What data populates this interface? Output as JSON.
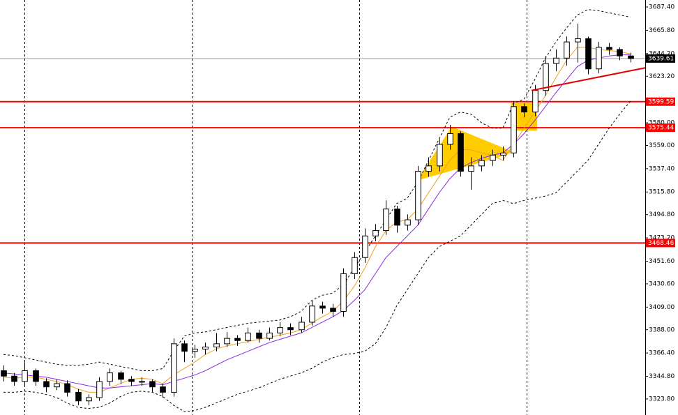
{
  "chart_data": {
    "type": "candlestick",
    "ylim": [
      3308.9,
      3693.9
    ],
    "xlim": [
      -0.33,
      60.4
    ],
    "yticks": [
      {
        "value": 3687.4,
        "label": "3687.40"
      },
      {
        "value": 3665.8,
        "label": "3665.80"
      },
      {
        "value": 3644.2,
        "label": "3644.20"
      },
      {
        "value": 3623.2,
        "label": "3623.20"
      },
      {
        "value": 3580,
        "label": "3580.00"
      },
      {
        "value": 3559,
        "label": "3559.00"
      },
      {
        "value": 3537.4,
        "label": "3537.40"
      },
      {
        "value": 3515.8,
        "label": "3515.80"
      },
      {
        "value": 3494.8,
        "label": "3494.80"
      },
      {
        "value": 3473.2,
        "label": "3473.20"
      },
      {
        "value": 3451.6,
        "label": "3451.60"
      },
      {
        "value": 3430.6,
        "label": "3430.60"
      },
      {
        "value": 3409,
        "label": "3409.00"
      },
      {
        "value": 3388,
        "label": "3388.00"
      },
      {
        "value": 3366.4,
        "label": "3366.40"
      },
      {
        "value": 3344.8,
        "label": "3344.80"
      },
      {
        "value": 3323.8,
        "label": "3323.80"
      }
    ],
    "open": [
      3350,
      3345,
      3340,
      3350,
      3340,
      3335,
      3338,
      3330,
      3322,
      3325,
      3340,
      3348,
      3342,
      3340,
      3340,
      3335,
      3330,
      3375,
      3368,
      3370,
      3372,
      3375,
      3380,
      3378,
      3385,
      3380,
      3385,
      3390,
      3388,
      3395,
      3410,
      3408,
      3405,
      3440,
      3455,
      3475,
      3480,
      3500,
      3485,
      3490,
      3535,
      3540,
      3560,
      3570,
      3535,
      3540,
      3545,
      3550,
      3552,
      3595,
      3590,
      3610,
      3635,
      3640,
      3655,
      3658,
      3630,
      3650,
      3648,
      3642
    ],
    "high": [
      3355,
      3348,
      3358,
      3352,
      3343,
      3342,
      3341,
      3333,
      3328,
      3344,
      3352,
      3350,
      3345,
      3344,
      3342,
      3338,
      3380,
      3378,
      3374,
      3376,
      3385,
      3386,
      3383,
      3390,
      3388,
      3390,
      3395,
      3394,
      3400,
      3415,
      3414,
      3412,
      3445,
      3460,
      3482,
      3486,
      3508,
      3503,
      3495,
      3540,
      3548,
      3565,
      3578,
      3572,
      3548,
      3550,
      3555,
      3558,
      3600,
      3598,
      3615,
      3642,
      3648,
      3660,
      3672,
      3660,
      3655,
      3654,
      3650,
      3645
    ],
    "low": [
      3340,
      3336,
      3336,
      3336,
      3330,
      3332,
      3326,
      3318,
      3318,
      3322,
      3336,
      3338,
      3336,
      3336,
      3330,
      3325,
      3326,
      3358,
      3362,
      3365,
      3368,
      3372,
      3373,
      3376,
      3376,
      3378,
      3382,
      3383,
      3385,
      3392,
      3403,
      3400,
      3400,
      3435,
      3450,
      3470,
      3476,
      3478,
      3480,
      3485,
      3530,
      3535,
      3555,
      3530,
      3518,
      3535,
      3540,
      3545,
      3548,
      3585,
      3586,
      3605,
      3628,
      3633,
      3636,
      3625,
      3626,
      3643,
      3638,
      3636
    ],
    "close": [
      3345,
      3340,
      3350,
      3340,
      3335,
      3338,
      3330,
      3322,
      3325,
      3340,
      3348,
      3342,
      3340,
      3340,
      3335,
      3330,
      3375,
      3368,
      3370,
      3372,
      3375,
      3380,
      3378,
      3385,
      3380,
      3385,
      3390,
      3388,
      3395,
      3410,
      3408,
      3405,
      3440,
      3455,
      3475,
      3480,
      3500,
      3485,
      3490,
      3535,
      3540,
      3560,
      3570,
      3535,
      3540,
      3545,
      3550,
      3552,
      3595,
      3590,
      3610,
      3635,
      3640,
      3655,
      3658,
      3630,
      3650,
      3648,
      3642,
      3639.61
    ],
    "up_color": "#ffffff",
    "down_color": "#000000",
    "indicators": [
      {
        "color": "#000000",
        "dashed": true,
        "values": [
          3365,
          3364,
          3362,
          3360,
          3358,
          3356,
          3355,
          3355,
          3356,
          3358,
          3356,
          3354,
          3352,
          3350,
          3350,
          3352,
          3368,
          3382,
          3385,
          3386,
          3388,
          3390,
          3392,
          3394,
          3395,
          3396,
          3397,
          3400,
          3405,
          3415,
          3420,
          3422,
          3430,
          3445,
          3460,
          3475,
          3490,
          3505,
          3510,
          3525,
          3545,
          3565,
          3585,
          3590,
          3588,
          3580,
          3575,
          3575,
          3598,
          3602,
          3620,
          3640,
          3655,
          3668,
          3680,
          3685,
          3684,
          3682,
          3680,
          3678
        ]
      },
      {
        "color": "#000000",
        "dashed": true,
        "values": [
          3330,
          3330,
          3331,
          3330,
          3328,
          3325,
          3320,
          3316,
          3315,
          3316,
          3320,
          3326,
          3330,
          3331,
          3330,
          3326,
          3318,
          3312,
          3313,
          3316,
          3320,
          3324,
          3328,
          3331,
          3334,
          3338,
          3342,
          3345,
          3348,
          3352,
          3358,
          3362,
          3365,
          3366,
          3368,
          3375,
          3390,
          3410,
          3425,
          3440,
          3455,
          3465,
          3470,
          3475,
          3485,
          3495,
          3505,
          3508,
          3505,
          3508,
          3510,
          3512,
          3515,
          3525,
          3535,
          3545,
          3560,
          3575,
          3588,
          3600
        ]
      },
      {
        "color": "#f0a020",
        "dashed": false,
        "values": [
          3344,
          3343,
          3344,
          3344,
          3342,
          3340,
          3337,
          3333,
          3330,
          3330,
          3334,
          3338,
          3342,
          3343,
          3342,
          3338,
          3346,
          3352,
          3358,
          3365,
          3370,
          3373,
          3375,
          3377,
          3379,
          3381,
          3383,
          3385,
          3388,
          3394,
          3400,
          3405,
          3415,
          3428,
          3445,
          3465,
          3480,
          3488,
          3490,
          3500,
          3515,
          3530,
          3545,
          3555,
          3555,
          3552,
          3550,
          3545,
          3560,
          3575,
          3590,
          3605,
          3622,
          3638,
          3650,
          3650,
          3648,
          3647,
          3646,
          3644
        ]
      },
      {
        "color": "#8a2be2",
        "dashed": false,
        "values": [
          3348,
          3347,
          3346,
          3345,
          3344,
          3342,
          3340,
          3338,
          3336,
          3334,
          3334,
          3335,
          3336,
          3337,
          3338,
          3337,
          3340,
          3343,
          3346,
          3350,
          3355,
          3360,
          3364,
          3368,
          3372,
          3376,
          3379,
          3382,
          3385,
          3390,
          3395,
          3400,
          3406,
          3415,
          3425,
          3440,
          3455,
          3465,
          3475,
          3485,
          3500,
          3515,
          3528,
          3538,
          3543,
          3547,
          3550,
          3552,
          3560,
          3570,
          3582,
          3595,
          3608,
          3620,
          3632,
          3638,
          3640,
          3642,
          3643,
          3643
        ]
      }
    ],
    "patterns": [
      {
        "color": "#ffcc00",
        "x": [
          39,
          42.2,
          47.9,
          46.5
        ],
        "values": [
          3527,
          3576,
          3553,
          3548
        ]
      },
      {
        "color": "#ffcc00",
        "x": [
          47.8,
          50.2,
          50.2,
          47.8
        ],
        "values": [
          3598,
          3598,
          3573,
          3573
        ]
      }
    ],
    "levels": [
      {
        "value": 3599.59,
        "label": "3599.59",
        "color": "#ff0000"
      },
      {
        "value": 3575.44,
        "label": "3575.44",
        "color": "#ff0000"
      },
      {
        "value": 3468.46,
        "label": "3468.46",
        "color": "#ff0000"
      }
    ],
    "current_price": {
      "value": 3639.61,
      "label": "3639.61",
      "color": "#000000"
    },
    "trendline": {
      "color": "#e00000",
      "x": [
        49.7,
        60.4
      ],
      "values": [
        3610,
        3631
      ]
    }
  }
}
